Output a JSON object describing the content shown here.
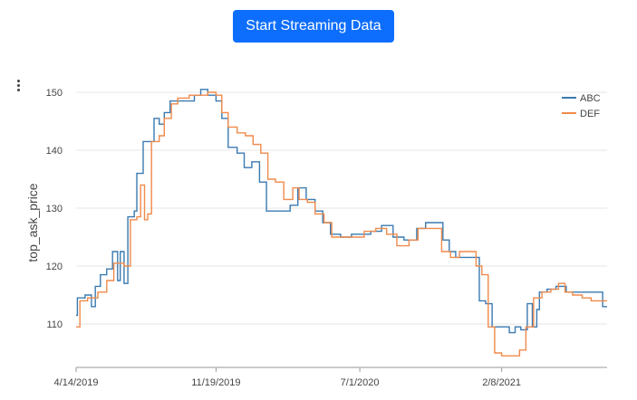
{
  "toolbar": {
    "stream_label": "Start Streaming Data"
  },
  "chart_data": {
    "type": "line",
    "ylabel": "top_ask_price",
    "xlabel": "",
    "ylim": [
      102.5,
      152.5
    ],
    "y_ticks": [
      110,
      120,
      130,
      140,
      150
    ],
    "x_range": [
      "2019-04-14",
      "2021-07-23"
    ],
    "x_ticks": [
      {
        "date": "2019-04-14",
        "label": "4/14/2019"
      },
      {
        "date": "2019-11-19",
        "label": "11/19/2019"
      },
      {
        "date": "2020-07-01",
        "label": "7/1/2020"
      },
      {
        "date": "2021-02-08",
        "label": "2/8/2021"
      }
    ],
    "grid": true,
    "legend": "top-right",
    "series": [
      {
        "name": "ABC",
        "color": "#3a7ab0",
        "points": [
          [
            "2019-04-14",
            111.5
          ],
          [
            "2019-04-16",
            114.5
          ],
          [
            "2019-04-28",
            115.0
          ],
          [
            "2019-05-08",
            113.0
          ],
          [
            "2019-05-14",
            116.5
          ],
          [
            "2019-05-22",
            118.5
          ],
          [
            "2019-06-01",
            119.5
          ],
          [
            "2019-06-10",
            122.5
          ],
          [
            "2019-06-18",
            117.5
          ],
          [
            "2019-06-22",
            122.5
          ],
          [
            "2019-06-28",
            117.0
          ],
          [
            "2019-07-04",
            128.5
          ],
          [
            "2019-07-14",
            129.5
          ],
          [
            "2019-07-18",
            136.0
          ],
          [
            "2019-07-28",
            141.5
          ],
          [
            "2019-08-14",
            145.5
          ],
          [
            "2019-08-22",
            144.5
          ],
          [
            "2019-08-30",
            146.5
          ],
          [
            "2019-09-08",
            148.5
          ],
          [
            "2019-10-06",
            148.5
          ],
          [
            "2019-10-16",
            149.5
          ],
          [
            "2019-10-26",
            150.5
          ],
          [
            "2019-11-06",
            149.5
          ],
          [
            "2019-11-19",
            148.5
          ],
          [
            "2019-11-28",
            145.5
          ],
          [
            "2019-12-08",
            140.5
          ],
          [
            "2019-12-22",
            139.5
          ],
          [
            "2020-01-02",
            137.0
          ],
          [
            "2020-01-14",
            138.0
          ],
          [
            "2020-01-26",
            134.5
          ],
          [
            "2020-02-06",
            129.5
          ],
          [
            "2020-02-18",
            129.5
          ],
          [
            "2020-03-02",
            129.5
          ],
          [
            "2020-03-14",
            130.5
          ],
          [
            "2020-03-26",
            133.5
          ],
          [
            "2020-04-08",
            131.5
          ],
          [
            "2020-04-22",
            129.5
          ],
          [
            "2020-05-04",
            127.5
          ],
          [
            "2020-05-16",
            125.5
          ],
          [
            "2020-06-01",
            125.0
          ],
          [
            "2020-06-18",
            125.5
          ],
          [
            "2020-07-01",
            125.5
          ],
          [
            "2020-07-18",
            126.0
          ],
          [
            "2020-08-04",
            127.0
          ],
          [
            "2020-08-22",
            125.0
          ],
          [
            "2020-09-08",
            124.5
          ],
          [
            "2020-09-28",
            126.5
          ],
          [
            "2020-10-12",
            127.5
          ],
          [
            "2020-10-28",
            127.5
          ],
          [
            "2020-11-08",
            124.5
          ],
          [
            "2020-11-18",
            122.5
          ],
          [
            "2020-11-28",
            121.5
          ],
          [
            "2020-12-14",
            121.5
          ],
          [
            "2020-12-24",
            121.5
          ],
          [
            "2021-01-04",
            114.0
          ],
          [
            "2021-01-14",
            113.5
          ],
          [
            "2021-01-24",
            109.5
          ],
          [
            "2021-02-08",
            109.5
          ],
          [
            "2021-02-20",
            108.5
          ],
          [
            "2021-03-01",
            109.5
          ],
          [
            "2021-03-10",
            109.0
          ],
          [
            "2021-03-20",
            113.5
          ],
          [
            "2021-03-28",
            109.5
          ],
          [
            "2021-04-04",
            112.5
          ],
          [
            "2021-04-08",
            115.5
          ],
          [
            "2021-04-20",
            116.0
          ],
          [
            "2021-05-04",
            116.5
          ],
          [
            "2021-05-20",
            115.5
          ],
          [
            "2021-06-10",
            115.5
          ],
          [
            "2021-07-01",
            115.5
          ],
          [
            "2021-07-16",
            113.0
          ],
          [
            "2021-07-23",
            113.0
          ]
        ]
      },
      {
        "name": "DEF",
        "color": "#f08a4b",
        "points": [
          [
            "2019-04-14",
            109.5
          ],
          [
            "2019-04-20",
            114.0
          ],
          [
            "2019-05-02",
            114.5
          ],
          [
            "2019-05-18",
            115.5
          ],
          [
            "2019-06-01",
            117.5
          ],
          [
            "2019-06-12",
            120.5
          ],
          [
            "2019-06-28",
            120.0
          ],
          [
            "2019-07-08",
            128.0
          ],
          [
            "2019-07-18",
            128.5
          ],
          [
            "2019-07-24",
            134.0
          ],
          [
            "2019-07-30",
            128.0
          ],
          [
            "2019-08-04",
            129.0
          ],
          [
            "2019-08-10",
            141.5
          ],
          [
            "2019-08-22",
            142.5
          ],
          [
            "2019-08-30",
            145.5
          ],
          [
            "2019-09-10",
            148.0
          ],
          [
            "2019-09-20",
            149.0
          ],
          [
            "2019-10-08",
            149.5
          ],
          [
            "2019-10-22",
            149.5
          ],
          [
            "2019-11-06",
            150.0
          ],
          [
            "2019-11-19",
            149.5
          ],
          [
            "2019-11-28",
            146.5
          ],
          [
            "2019-12-08",
            144.0
          ],
          [
            "2019-12-22",
            143.0
          ],
          [
            "2020-01-04",
            142.5
          ],
          [
            "2020-01-16",
            141.0
          ],
          [
            "2020-01-28",
            139.5
          ],
          [
            "2020-02-08",
            135.0
          ],
          [
            "2020-02-20",
            134.5
          ],
          [
            "2020-03-04",
            131.5
          ],
          [
            "2020-03-18",
            133.5
          ],
          [
            "2020-03-28",
            131.5
          ],
          [
            "2020-04-10",
            131.0
          ],
          [
            "2020-04-22",
            129.0
          ],
          [
            "2020-05-06",
            127.5
          ],
          [
            "2020-05-18",
            125.0
          ],
          [
            "2020-06-04",
            125.0
          ],
          [
            "2020-06-22",
            125.0
          ],
          [
            "2020-07-08",
            126.0
          ],
          [
            "2020-07-26",
            126.5
          ],
          [
            "2020-08-12",
            125.5
          ],
          [
            "2020-08-28",
            123.5
          ],
          [
            "2020-09-16",
            124.5
          ],
          [
            "2020-09-30",
            126.5
          ],
          [
            "2020-10-18",
            126.5
          ],
          [
            "2020-11-06",
            122.5
          ],
          [
            "2020-11-20",
            121.5
          ],
          [
            "2020-12-04",
            122.5
          ],
          [
            "2020-12-20",
            122.5
          ],
          [
            "2020-12-30",
            120.0
          ],
          [
            "2021-01-08",
            118.5
          ],
          [
            "2021-01-18",
            109.5
          ],
          [
            "2021-01-28",
            105.0
          ],
          [
            "2021-02-08",
            104.5
          ],
          [
            "2021-02-20",
            104.5
          ],
          [
            "2021-03-08",
            105.5
          ],
          [
            "2021-03-18",
            109.5
          ],
          [
            "2021-03-30",
            114.5
          ],
          [
            "2021-04-12",
            115.5
          ],
          [
            "2021-04-26",
            116.0
          ],
          [
            "2021-05-08",
            117.0
          ],
          [
            "2021-05-18",
            115.5
          ],
          [
            "2021-05-30",
            115.0
          ],
          [
            "2021-06-14",
            114.5
          ],
          [
            "2021-06-28",
            114.0
          ],
          [
            "2021-07-23",
            114.0
          ]
        ]
      }
    ]
  }
}
